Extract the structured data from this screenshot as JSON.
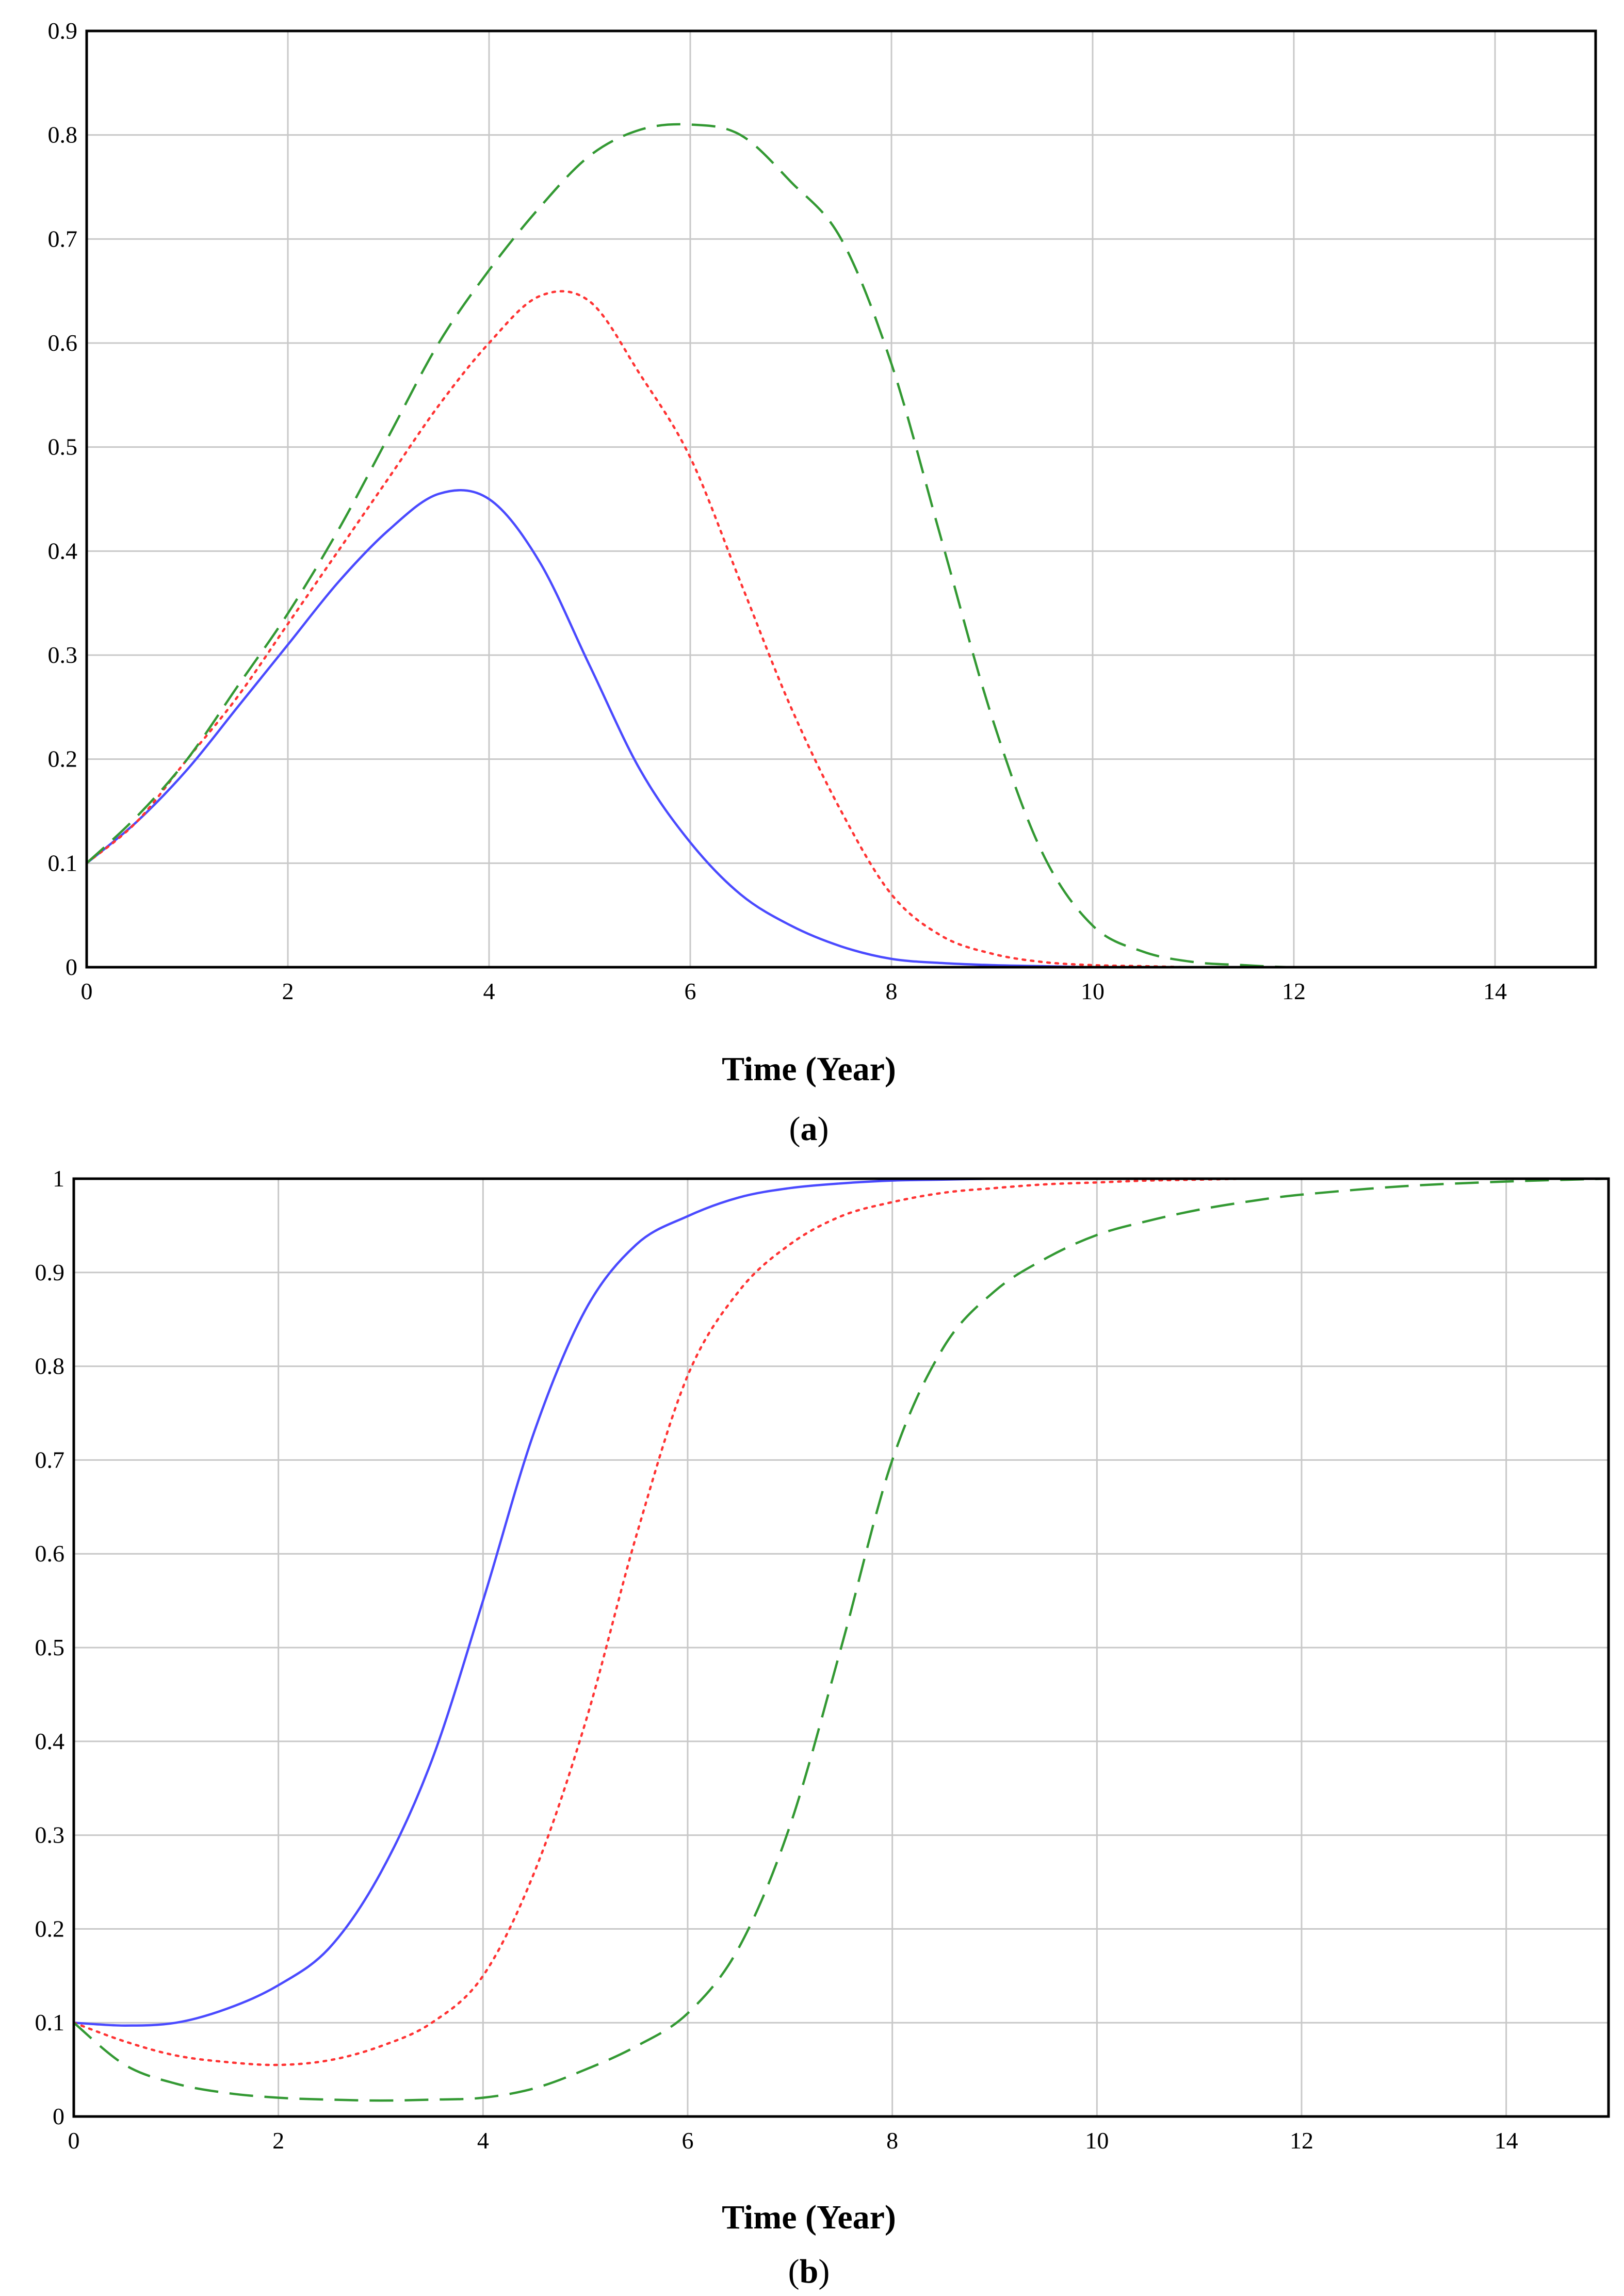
{
  "chart_data": [
    {
      "type": "line",
      "caption_letter": "a",
      "xlabel": "Time (Year)",
      "ylabel": "",
      "xlim": [
        0,
        15
      ],
      "ylim": [
        0,
        0.9
      ],
      "xticks": [
        0,
        2,
        4,
        6,
        8,
        10,
        12,
        14
      ],
      "xtick_labels": [
        "0",
        "2",
        "4",
        "6",
        "8",
        "10",
        "12",
        "14"
      ],
      "yticks": [
        0,
        0.1,
        0.2,
        0.3,
        0.4,
        0.5,
        0.6,
        0.7,
        0.8,
        0.9
      ],
      "ytick_labels": [
        "0",
        "0.1",
        "0.2",
        "0.3",
        "0.4",
        "0.5",
        "0.6",
        "0.7",
        "0.8",
        "0.9"
      ],
      "grid": true,
      "legend": "none",
      "x": [
        0,
        0.5,
        1,
        1.5,
        2,
        2.5,
        3,
        3.5,
        4,
        4.5,
        5,
        5.5,
        6,
        6.5,
        7,
        7.5,
        8,
        8.5,
        9,
        9.5,
        10,
        10.5,
        11,
        11.5,
        12,
        13,
        14,
        15
      ],
      "series": [
        {
          "style": "solid",
          "color": "#4a4aff",
          "values": [
            0.1,
            0.14,
            0.19,
            0.25,
            0.31,
            0.37,
            0.42,
            0.455,
            0.45,
            0.39,
            0.29,
            0.19,
            0.12,
            0.07,
            0.04,
            0.02,
            0.008,
            0.004,
            0.002,
            0.001,
            0.0,
            0.0,
            0.0,
            0.0,
            0.0,
            0.0,
            0.0,
            0.0
          ]
        },
        {
          "style": "dotted",
          "color": "#ff3333",
          "values": [
            0.1,
            0.14,
            0.2,
            0.26,
            0.33,
            0.4,
            0.47,
            0.54,
            0.6,
            0.645,
            0.64,
            0.57,
            0.49,
            0.37,
            0.25,
            0.15,
            0.07,
            0.03,
            0.013,
            0.005,
            0.002,
            0.001,
            0.0,
            0.0,
            0.0,
            0.0,
            0.0,
            0.0
          ]
        },
        {
          "style": "dashed",
          "color": "#339933",
          "values": [
            0.1,
            0.145,
            0.2,
            0.27,
            0.34,
            0.42,
            0.51,
            0.6,
            0.67,
            0.73,
            0.78,
            0.805,
            0.81,
            0.8,
            0.755,
            0.7,
            0.58,
            0.41,
            0.24,
            0.11,
            0.04,
            0.015,
            0.005,
            0.002,
            0.0,
            0.0,
            0.0,
            0.0
          ]
        }
      ]
    },
    {
      "type": "line",
      "caption_letter": "b",
      "xlabel": "Time (Year)",
      "ylabel": "",
      "xlim": [
        0,
        15
      ],
      "ylim": [
        0,
        1
      ],
      "xticks": [
        0,
        2,
        4,
        6,
        8,
        10,
        12,
        14
      ],
      "xtick_labels": [
        "0",
        "2",
        "4",
        "6",
        "8",
        "10",
        "12",
        "14"
      ],
      "yticks": [
        0,
        0.1,
        0.2,
        0.3,
        0.4,
        0.5,
        0.6,
        0.7,
        0.8,
        0.9,
        1
      ],
      "ytick_labels": [
        "0",
        "0.1",
        "0.2",
        "0.3",
        "0.4",
        "0.5",
        "0.6",
        "0.7",
        "0.8",
        "0.9",
        "1"
      ],
      "grid": true,
      "legend": "none",
      "x": [
        0,
        0.5,
        1,
        1.5,
        2,
        2.5,
        3,
        3.5,
        4,
        4.5,
        5,
        5.5,
        6,
        6.5,
        7,
        7.5,
        8,
        8.5,
        9,
        9.5,
        10,
        10.5,
        11,
        11.5,
        12,
        13,
        14,
        15
      ],
      "series": [
        {
          "style": "solid",
          "color": "#4a4aff",
          "values": [
            0.1,
            0.097,
            0.1,
            0.115,
            0.14,
            0.18,
            0.26,
            0.38,
            0.55,
            0.73,
            0.86,
            0.93,
            0.96,
            0.98,
            0.99,
            0.995,
            0.998,
            0.999,
            1.0,
            1.0,
            1.0,
            1.0,
            1.0,
            1.0,
            1.0,
            1.0,
            1.0,
            1.0
          ]
        },
        {
          "style": "dotted",
          "color": "#ff3333",
          "values": [
            0.1,
            0.08,
            0.065,
            0.058,
            0.055,
            0.06,
            0.075,
            0.1,
            0.15,
            0.26,
            0.42,
            0.62,
            0.79,
            0.88,
            0.93,
            0.96,
            0.975,
            0.985,
            0.99,
            0.994,
            0.996,
            0.998,
            0.999,
            1.0,
            1.0,
            1.0,
            1.0,
            1.0
          ]
        },
        {
          "style": "dashed",
          "color": "#339933",
          "values": [
            0.1,
            0.055,
            0.035,
            0.025,
            0.02,
            0.018,
            0.017,
            0.018,
            0.02,
            0.03,
            0.05,
            0.075,
            0.11,
            0.18,
            0.31,
            0.5,
            0.7,
            0.82,
            0.88,
            0.915,
            0.94,
            0.955,
            0.967,
            0.976,
            0.983,
            0.992,
            0.997,
            1.0
          ]
        }
      ]
    }
  ]
}
